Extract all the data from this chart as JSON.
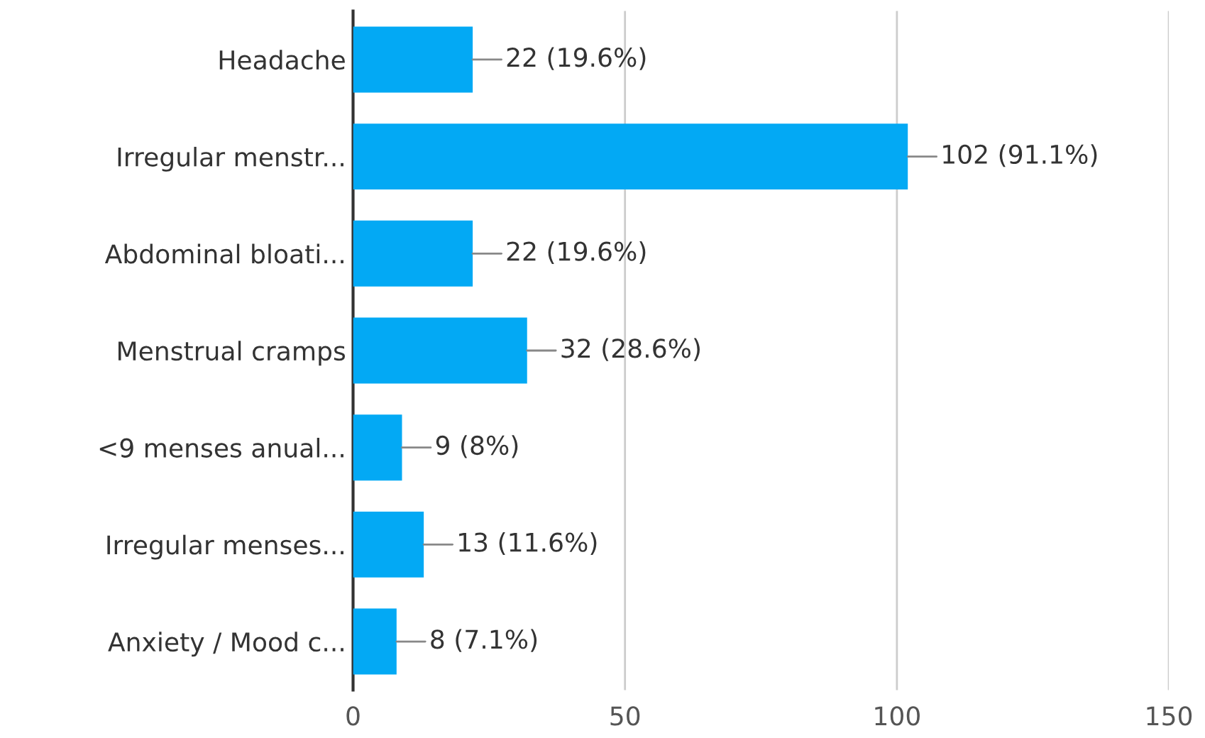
{
  "chart_data": {
    "type": "bar",
    "orientation": "horizontal",
    "categories": [
      "Headache",
      "Irregular menstr...",
      "Abdominal bloati...",
      "Menstrual cramps",
      "<9 menses anual...",
      "Irregular menses...",
      "Anxiety / Mood c..."
    ],
    "values": [
      22,
      102,
      22,
      32,
      9,
      13,
      8
    ],
    "value_labels": [
      "22 (19.6%)",
      "102 (91.1%)",
      "22 (19.6%)",
      "32 (28.6%)",
      "9 (8%)",
      "13 (11.6%)",
      "8 (7.1%)"
    ],
    "color": "#03a9f4",
    "xlim": [
      0,
      150
    ],
    "xticks": [
      0,
      50,
      100,
      150
    ],
    "grid": "x"
  }
}
